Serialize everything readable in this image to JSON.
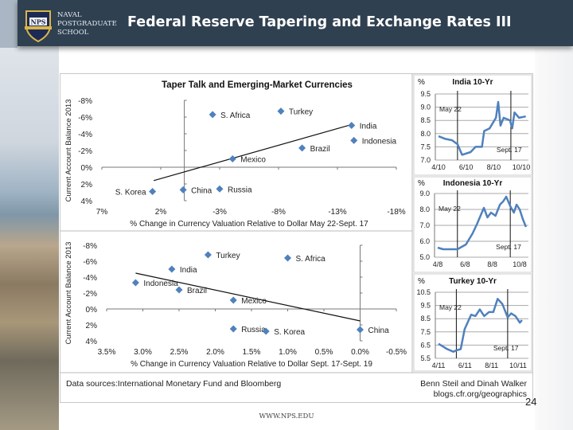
{
  "header": {
    "title": "Federal Reserve Tapering and Exchange Rates III",
    "school_lines": [
      "NAVAL",
      "POSTGRADUATE",
      "SCHOOL"
    ],
    "logo_text": "NPS",
    "bg_color": "#2f4051"
  },
  "footer": {
    "sources": "Data sources:International Monetary Fund and Bloomberg",
    "authors": "Benn Steil and Dinah Walker",
    "blog": "blogs.cfr.org/geographics",
    "page_number": "24",
    "url": "WWW.NPS.EDU"
  },
  "chart_data": [
    {
      "type": "scatter",
      "title": "Taper Talk and Emerging-Market Currencies",
      "xlabel": "% Change in Currency Valuation Relative to Dollar May 22-Sept. 17",
      "ylabel": "Current Account Balance 2013",
      "xlim": [
        7,
        -18
      ],
      "ylim": [
        -8,
        4
      ],
      "x_ticks": [
        "7%",
        "2%",
        "-3%",
        "-8%",
        "-13%",
        "-18%"
      ],
      "y_ticks": [
        "-8%",
        "-6%",
        "-4%",
        "-2%",
        "0%",
        "2%",
        "4%"
      ],
      "marker_color": "#4f81bd",
      "points": [
        {
          "label": "S. Africa",
          "x": -2.4,
          "y": -6.3
        },
        {
          "label": "Turkey",
          "x": -8.2,
          "y": -6.7
        },
        {
          "label": "India",
          "x": -14.2,
          "y": -5.0
        },
        {
          "label": "Indonesia",
          "x": -14.4,
          "y": -3.2
        },
        {
          "label": "Brazil",
          "x": -10.0,
          "y": -2.3
        },
        {
          "label": "Mexico",
          "x": -4.1,
          "y": -1.0
        },
        {
          "label": "S. Korea",
          "x": 2.7,
          "y": 2.9
        },
        {
          "label": "China",
          "x": 0.1,
          "y": 2.7
        },
        {
          "label": "Russia",
          "x": -3.0,
          "y": 2.6
        }
      ],
      "trendline": [
        [
          2.6,
          1.6
        ],
        [
          -14.2,
          -5.1
        ]
      ]
    },
    {
      "type": "scatter",
      "xlabel": "% Change in Currency Valuation Relative to Dollar Sept. 17-Sept. 19",
      "ylabel": "Current Account Balance 2013",
      "xlim": [
        3.5,
        -0.5
      ],
      "ylim": [
        -8,
        4
      ],
      "x_ticks": [
        "3.5%",
        "3.0%",
        "2.5%",
        "2.0%",
        "1.5%",
        "1.0%",
        "0.5%",
        "0.0%",
        "-0.5%"
      ],
      "y_ticks": [
        "-8%",
        "-6%",
        "-4%",
        "-2%",
        "0%",
        "2%",
        "4%"
      ],
      "marker_color": "#4f81bd",
      "points": [
        {
          "label": "Turkey",
          "x": 2.1,
          "y": -6.8
        },
        {
          "label": "S. Africa",
          "x": 1.0,
          "y": -6.4
        },
        {
          "label": "India",
          "x": 2.6,
          "y": -5.0
        },
        {
          "label": "Indonesia",
          "x": 3.1,
          "y": -3.3
        },
        {
          "label": "Brazil",
          "x": 2.5,
          "y": -2.4
        },
        {
          "label": "Mexico",
          "x": 1.75,
          "y": -1.1
        },
        {
          "label": "Russia",
          "x": 1.75,
          "y": 2.5
        },
        {
          "label": "S. Korea",
          "x": 1.3,
          "y": 2.8
        },
        {
          "label": "China",
          "x": 0.0,
          "y": 2.6
        }
      ],
      "trendline": [
        [
          3.1,
          -4.5
        ],
        [
          0.0,
          1.5
        ]
      ]
    },
    {
      "type": "line",
      "title": "India 10-Yr",
      "ylabel": "%",
      "ylim": [
        7.0,
        9.5
      ],
      "y_ticks": [
        "7.0",
        "7.5",
        "8.0",
        "8.5",
        "9.0",
        "9.5"
      ],
      "x_ticks": [
        "4/10",
        "6/10",
        "8/10",
        "10/10"
      ],
      "x_tick_dates": [
        "2013-04-10",
        "2013-06-10",
        "2013-08-10",
        "2013-10-10"
      ],
      "markers": [
        {
          "label": "May 22",
          "date": "2013-05-22"
        },
        {
          "label": "Sept. 17",
          "date": "2013-09-17"
        }
      ],
      "line_color": "#4f81bd",
      "x": [
        "2013-04-10",
        "2013-04-25",
        "2013-05-10",
        "2013-05-22",
        "2013-06-01",
        "2013-06-20",
        "2013-07-01",
        "2013-07-15",
        "2013-07-20",
        "2013-08-01",
        "2013-08-15",
        "2013-08-20",
        "2013-08-25",
        "2013-09-01",
        "2013-09-15",
        "2013-09-20",
        "2013-09-25",
        "2013-10-05",
        "2013-10-20"
      ],
      "y": [
        7.9,
        7.8,
        7.75,
        7.6,
        7.2,
        7.3,
        7.5,
        7.5,
        8.1,
        8.2,
        8.6,
        9.2,
        8.3,
        8.6,
        8.5,
        8.2,
        8.8,
        8.6,
        8.65
      ]
    },
    {
      "type": "line",
      "title": "Indonesia 10-Yr",
      "ylabel": "%",
      "ylim": [
        5.0,
        9.0
      ],
      "y_ticks": [
        "5.0",
        "6.0",
        "7.0",
        "8.0",
        "9.0"
      ],
      "x_ticks": [
        "4/8",
        "6/8",
        "8/8",
        "10/8"
      ],
      "x_tick_dates": [
        "2013-04-08",
        "2013-06-08",
        "2013-08-08",
        "2013-10-08"
      ],
      "markers": [
        {
          "label": "May 22",
          "date": "2013-05-22"
        },
        {
          "label": "Sept. 17",
          "date": "2013-09-17"
        }
      ],
      "line_color": "#4f81bd",
      "x": [
        "2013-04-08",
        "2013-04-20",
        "2013-05-10",
        "2013-05-22",
        "2013-06-10",
        "2013-06-25",
        "2013-07-05",
        "2013-07-20",
        "2013-07-28",
        "2013-08-05",
        "2013-08-15",
        "2013-08-25",
        "2013-09-01",
        "2013-09-08",
        "2013-09-17",
        "2013-09-25",
        "2013-10-01",
        "2013-10-08",
        "2013-10-15",
        "2013-10-22"
      ],
      "y": [
        5.6,
        5.5,
        5.5,
        5.5,
        5.8,
        6.5,
        7.1,
        8.1,
        7.5,
        7.8,
        7.6,
        8.3,
        8.5,
        8.8,
        8.2,
        7.8,
        8.3,
        8.0,
        7.4,
        6.9
      ]
    },
    {
      "type": "line",
      "title": "Turkey 10-Yr",
      "ylabel": "%",
      "ylim": [
        5.5,
        10.5
      ],
      "y_ticks": [
        "5.5",
        "6.5",
        "7.5",
        "8.5",
        "9.5",
        "10.5"
      ],
      "x_ticks": [
        "4/11",
        "6/11",
        "8/11",
        "10/11"
      ],
      "x_tick_dates": [
        "2013-04-11",
        "2013-06-11",
        "2013-08-11",
        "2013-10-11"
      ],
      "markers": [
        {
          "label": "May 22",
          "date": "2013-05-22"
        },
        {
          "label": "Sept. 17",
          "date": "2013-09-17"
        }
      ],
      "line_color": "#4f81bd",
      "x": [
        "2013-04-11",
        "2013-05-01",
        "2013-05-15",
        "2013-05-22",
        "2013-06-01",
        "2013-06-10",
        "2013-06-25",
        "2013-07-05",
        "2013-07-15",
        "2013-07-25",
        "2013-08-05",
        "2013-08-15",
        "2013-08-25",
        "2013-09-05",
        "2013-09-17",
        "2013-09-25",
        "2013-10-05",
        "2013-10-15",
        "2013-10-20"
      ],
      "y": [
        6.6,
        6.2,
        6.0,
        6.1,
        6.2,
        7.7,
        8.8,
        8.7,
        9.2,
        8.7,
        9.0,
        9.0,
        10.0,
        9.6,
        8.6,
        8.9,
        8.7,
        8.2,
        8.4
      ]
    }
  ]
}
